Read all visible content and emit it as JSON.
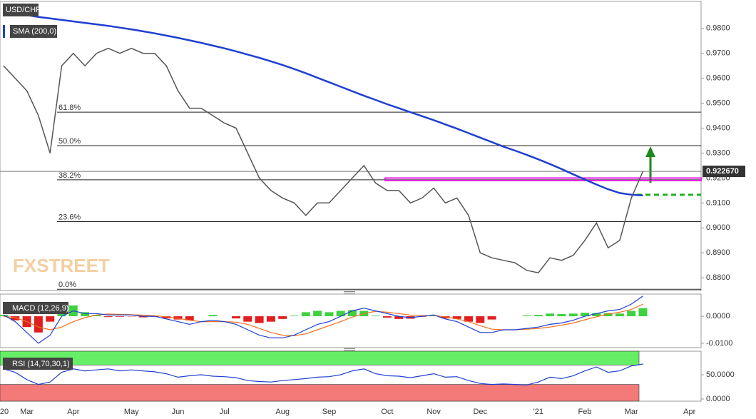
{
  "chart_data": [
    {
      "type": "line",
      "title": "USD/CHF",
      "categories": [
        "'20",
        null,
        "Mar",
        null,
        null,
        null,
        "Apr",
        null,
        null,
        null,
        null,
        "May",
        null,
        null,
        null,
        "Jun",
        null,
        null,
        null,
        "Jul",
        null,
        null,
        null,
        null,
        "Aug",
        null,
        null,
        null,
        "Sep",
        null,
        null,
        null,
        null,
        "Oct",
        null,
        null,
        null,
        "Nov",
        null,
        null,
        null,
        "Dec",
        null,
        null,
        null,
        null,
        "'21",
        null,
        null,
        null,
        "Feb",
        null,
        null,
        null,
        "Mar",
        null,
        null,
        null,
        null,
        "Apr"
      ],
      "series": [
        {
          "color": "#555555",
          "values": [
            0.965,
            0.96,
            0.955,
            0.945,
            0.93,
            0.965,
            0.97,
            0.965,
            0.97,
            0.972,
            0.97,
            0.972,
            0.97,
            0.97,
            0.965,
            0.955,
            0.948,
            0.948,
            0.945,
            0.942,
            0.94,
            0.93,
            0.92,
            0.915,
            0.912,
            0.91,
            0.905,
            0.91,
            0.91,
            0.915,
            0.92,
            0.925,
            0.918,
            0.915,
            0.915,
            0.91,
            0.912,
            0.916,
            0.91,
            0.912,
            0.905,
            0.89,
            0.888,
            0.887,
            0.886,
            0.883,
            0.882,
            0.888,
            0.887,
            0.889,
            0.895,
            0.902,
            0.892,
            0.895,
            0.912,
            0.9227,
            null,
            null,
            null,
            null
          ]
        },
        {
          "name": "SMA (200,0)",
          "color": "#1f3fd1",
          "values": [
            0.9866,
            0.986,
            0.9853,
            0.9846,
            0.984,
            0.9834,
            0.9828,
            0.9822,
            0.9816,
            0.981,
            0.9803,
            0.9796,
            0.9788,
            0.978,
            0.9771,
            0.9762,
            0.9752,
            0.9742,
            0.9731,
            0.972,
            0.9708,
            0.9695,
            0.9682,
            0.9668,
            0.9653,
            0.9637,
            0.962,
            0.9602,
            0.9584,
            0.9566,
            0.9548,
            0.953,
            0.9513,
            0.9496,
            0.948,
            0.9464,
            0.9448,
            0.9432,
            0.9415,
            0.9398,
            0.938,
            0.9362,
            0.9344,
            0.9326,
            0.931,
            0.9293,
            0.9275,
            0.9256,
            0.9236,
            0.9215,
            0.9194,
            0.9174,
            0.9155,
            0.914,
            0.9133,
            0.913,
            null,
            null,
            null,
            null
          ]
        }
      ],
      "ylim": [
        0.8749,
        0.9908
      ],
      "yticks": [
        {
          "value": 0.88,
          "label": "0.8800"
        },
        {
          "value": 0.89,
          "label": "0.8900"
        },
        {
          "value": 0.9,
          "label": "0.9000"
        },
        {
          "value": 0.91,
          "label": "0.9100"
        },
        {
          "value": 0.92,
          "label": "0.9200"
        },
        {
          "value": 0.93,
          "label": "0.9300"
        },
        {
          "value": 0.94,
          "label": "0.9400"
        },
        {
          "value": 0.95,
          "label": "0.9500"
        },
        {
          "value": 0.96,
          "label": "0.9600"
        },
        {
          "value": 0.97,
          "label": "0.9700"
        },
        {
          "value": 0.98,
          "label": "0.9800"
        }
      ],
      "levels": [
        {
          "value": 0.9464,
          "label": "61.8%"
        },
        {
          "value": 0.933,
          "label": "50.0%"
        },
        {
          "value": 0.9193,
          "label": "38.2%"
        },
        {
          "value": 0.9025,
          "label": "23.6%"
        },
        {
          "value": 0.8754,
          "label": "0.0%"
        }
      ],
      "last_price": {
        "value": 0.92267,
        "label": "0.922670"
      },
      "resistance": [
        0.919,
        0.92
      ],
      "resistance_color": "#e020e0",
      "support": 0.9133,
      "support_color": "#22b022",
      "watermark": "FXSTREET"
    },
    {
      "type": "macd",
      "title": "MACD (12,26,9)",
      "series": [
        {
          "color": "#1f3fd1",
          "values": [
            0.0005,
            -0.002,
            -0.006,
            -0.01,
            -0.007,
            0.0,
            0.002,
            0.001,
            0.001,
            0.0005,
            0.0005,
            0.0005,
            0.0,
            0.0,
            -0.001,
            -0.002,
            -0.003,
            -0.002,
            -0.0015,
            -0.002,
            -0.003,
            -0.005,
            -0.007,
            -0.008,
            -0.008,
            -0.007,
            -0.005,
            -0.003,
            -0.002,
            0.0,
            0.002,
            0.003,
            0.002,
            0.001,
            0.0,
            -0.0005,
            0.0,
            0.0005,
            -0.001,
            -0.002,
            -0.004,
            -0.006,
            -0.006,
            -0.005,
            -0.005,
            -0.0045,
            -0.004,
            -0.003,
            -0.0025,
            -0.0015,
            0.0,
            0.001,
            0.002,
            0.0025,
            0.0045,
            0.0075
          ]
        },
        {
          "color": "#f07020",
          "values": [
            0.0,
            -0.0005,
            -0.002,
            -0.004,
            -0.005,
            -0.004,
            -0.002,
            -0.0005,
            0.0005,
            0.0008,
            0.0007,
            0.0006,
            0.0004,
            0.0002,
            -0.0002,
            -0.0008,
            -0.0015,
            -0.002,
            -0.002,
            -0.002,
            -0.0022,
            -0.003,
            -0.0045,
            -0.006,
            -0.007,
            -0.0072,
            -0.0065,
            -0.005,
            -0.0035,
            -0.002,
            -0.0003,
            0.001,
            0.0018,
            0.0015,
            0.001,
            0.0004,
            0.0002,
            0.0003,
            -0.0002,
            -0.001,
            -0.002,
            -0.0035,
            -0.0048,
            -0.005,
            -0.005,
            -0.0048,
            -0.0045,
            -0.004,
            -0.0033,
            -0.0025,
            -0.0013,
            -0.0002,
            0.0008,
            0.0015,
            0.0025,
            0.0045
          ]
        }
      ],
      "histogram": [
        0.0005,
        -0.0015,
        -0.004,
        -0.006,
        -0.002,
        0.004,
        0.004,
        0.0015,
        0.0005,
        -0.0003,
        -0.0002,
        -0.0001,
        -0.0004,
        -0.0002,
        -0.0008,
        -0.0012,
        -0.0015,
        0.0,
        0.0005,
        0.0,
        -0.0008,
        -0.002,
        -0.0025,
        -0.002,
        -0.001,
        0.0002,
        0.0015,
        0.002,
        0.0015,
        0.002,
        0.0023,
        0.002,
        0.0002,
        -0.0005,
        -0.001,
        -0.0009,
        -0.0002,
        0.0002,
        -0.0008,
        -0.001,
        -0.002,
        -0.0025,
        -0.0012,
        0.0,
        0.0,
        0.0003,
        0.0005,
        0.001,
        0.0008,
        0.001,
        0.0013,
        0.0012,
        0.0012,
        0.001,
        0.002,
        0.003
      ],
      "pos_color": "#3fd13f",
      "neg_color": "#e02020",
      "ylim": [
        -0.0116,
        0.0082
      ],
      "yticks": [
        {
          "value": 0,
          "label": "0.0000"
        },
        {
          "value": -0.01,
          "label": "-0.0100"
        }
      ]
    },
    {
      "type": "rsi",
      "title": "RSI (14,70,30,1)",
      "series": [
        {
          "color": "#1f3fd1",
          "values": [
            62,
            55,
            40,
            30,
            35,
            55,
            62,
            58,
            60,
            62,
            58,
            60,
            58,
            56,
            52,
            45,
            48,
            50,
            47,
            46,
            44,
            38,
            36,
            35,
            38,
            40,
            42,
            45,
            46,
            50,
            58,
            62,
            52,
            48,
            47,
            44,
            48,
            52,
            45,
            46,
            38,
            32,
            30,
            31,
            30,
            29,
            35,
            45,
            42,
            48,
            58,
            66,
            55,
            58,
            68,
            72
          ]
        }
      ],
      "overbought": 70,
      "overbought_color": "#66ee66",
      "oversold": 30,
      "oversold_color": "#f47a7a",
      "ylim": [
        -4.4,
        98.5
      ],
      "yticks": [
        {
          "value": 0,
          "label": "0.0000"
        },
        {
          "value": 50,
          "label": "50.0000"
        }
      ]
    }
  ]
}
